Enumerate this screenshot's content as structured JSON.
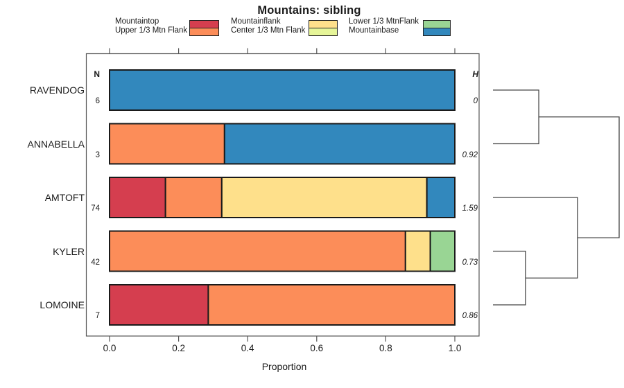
{
  "title": "Mountains: sibling",
  "legend": {
    "columns": [
      {
        "items": [
          {
            "label": "Mountaintop",
            "color": "#D53E4F"
          },
          {
            "label": "Upper 1/3 Mtn Flank",
            "color": "#FC8D59"
          }
        ]
      },
      {
        "items": [
          {
            "label": "Mountainflank",
            "color": "#FEE08B"
          },
          {
            "label": "Center 1/3 Mtn Flank",
            "color": "#E6F598"
          }
        ]
      },
      {
        "items": [
          {
            "label": "Lower 1/3 MtnFlank",
            "color": "#99D594"
          },
          {
            "label": "Mountainbase",
            "color": "#3288BD"
          }
        ]
      }
    ]
  },
  "chart_data": {
    "type": "bar",
    "orientation": "horizontal-stacked",
    "title": "Mountains: sibling",
    "xlabel": "Proportion",
    "xlim": [
      0,
      1
    ],
    "x_ticks": [
      "0.0",
      "0.2",
      "0.4",
      "0.6",
      "0.8",
      "1.0"
    ],
    "grid": false,
    "col_headers": {
      "n": "N",
      "h": "H"
    },
    "categories": [
      "Mountaintop",
      "Upper 1/3 Mtn Flank",
      "Mountainflank",
      "Center 1/3 Mtn Flank",
      "Lower 1/3 MtnFlank",
      "Mountainbase"
    ],
    "colors": {
      "Mountaintop": "#D53E4F",
      "Upper 1/3 Mtn Flank": "#FC8D59",
      "Mountainflank": "#FEE08B",
      "Center 1/3 Mtn Flank": "#E6F598",
      "Lower 1/3 MtnFlank": "#99D594",
      "Mountainbase": "#3288BD"
    },
    "rows": [
      {
        "label": "RAVENDOG",
        "n": "6",
        "h": "0",
        "segments": [
          [
            "Mountainbase",
            1.0
          ]
        ]
      },
      {
        "label": "ANNABELLA",
        "n": "3",
        "h": "0.92",
        "segments": [
          [
            "Upper 1/3 Mtn Flank",
            0.333
          ],
          [
            "Mountainbase",
            0.667
          ]
        ]
      },
      {
        "label": "AMTOFT",
        "n": "74",
        "h": "1.59",
        "segments": [
          [
            "Mountaintop",
            0.162
          ],
          [
            "Upper 1/3 Mtn Flank",
            0.163
          ],
          [
            "Mountainflank",
            0.594
          ],
          [
            "Mountainbase",
            0.081
          ]
        ]
      },
      {
        "label": "KYLER",
        "n": "42",
        "h": "0.73",
        "segments": [
          [
            "Upper 1/3 Mtn Flank",
            0.857
          ],
          [
            "Mountainflank",
            0.072
          ],
          [
            "Lower 1/3 MtnFlank",
            0.071
          ]
        ]
      },
      {
        "label": "LOMOINE",
        "n": "7",
        "h": "0.86",
        "segments": [
          [
            "Mountaintop",
            0.286
          ],
          [
            "Upper 1/3 Mtn Flank",
            0.714
          ]
        ]
      }
    ],
    "dendrogram": {
      "leaf_order": [
        "RAVENDOG",
        "ANNABELLA",
        "AMTOFT",
        "KYLER",
        "LOMOINE"
      ],
      "merges": [
        {
          "children": [
            {
              "leaf": 3
            },
            {
              "leaf": 4
            }
          ],
          "x_frac": 0.258
        },
        {
          "children": [
            {
              "leaf": 0
            },
            {
              "leaf": 1
            }
          ],
          "x_frac": 0.363
        },
        {
          "children": [
            {
              "leaf": 2
            },
            {
              "merge": 0
            }
          ],
          "x_frac": 0.67
        },
        {
          "children": [
            {
              "merge": 1
            },
            {
              "merge": 2
            }
          ],
          "x_frac": 1.0
        }
      ]
    }
  }
}
